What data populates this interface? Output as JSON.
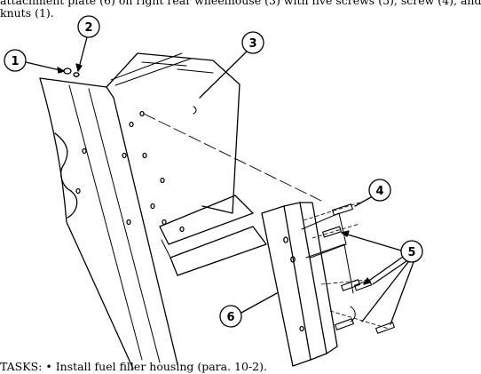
{
  "intro": {
    "line1": "attachment plate (6) on right rear wheelhouse (3) with five screws (5), screw (4), and",
    "line2": "knuts (1)."
  },
  "figure": {
    "callouts": [
      "1",
      "2",
      "3",
      "4",
      "5",
      "6"
    ]
  },
  "followon": {
    "label": "TASKS:",
    "bullet": "•",
    "text": "Install fuel filler housing (para. 10-2)."
  }
}
